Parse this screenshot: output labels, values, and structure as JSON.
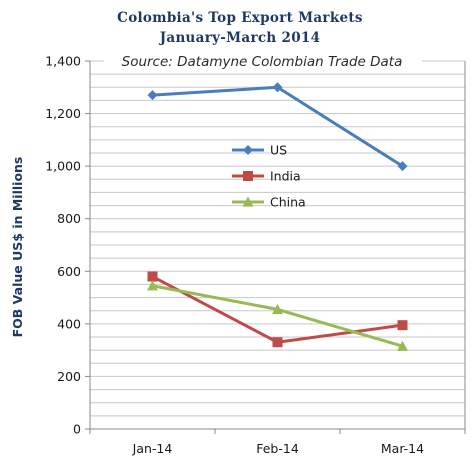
{
  "chart_data": {
    "type": "line",
    "title_line1": "Colombia's Top Export Markets",
    "title_line2": "January-March 2014",
    "subtitle": "Source: Datamyne Colombian Trade Data",
    "ylabel": "FOB Value US$ in Millions",
    "xlabel": "",
    "categories": [
      "Jan-14",
      "Feb-14",
      "Mar-14"
    ],
    "ylim": [
      0,
      1400
    ],
    "yticks": [
      0,
      200,
      400,
      600,
      800,
      1000,
      1200,
      1400
    ],
    "ytick_labels": [
      "0",
      "200",
      "400",
      "600",
      "800",
      "1,000",
      "1,200",
      "1,400"
    ],
    "minor_grid_step": 50,
    "grid": true,
    "legend_position": "center",
    "series": [
      {
        "name": "US",
        "values": [
          1270,
          1300,
          1000
        ],
        "color": "#4a7ebb",
        "marker": "diamond"
      },
      {
        "name": "India",
        "values": [
          580,
          330,
          395
        ],
        "color": "#be4b48",
        "marker": "square"
      },
      {
        "name": "China",
        "values": [
          545,
          455,
          315
        ],
        "color": "#98b954",
        "marker": "triangle"
      }
    ]
  }
}
